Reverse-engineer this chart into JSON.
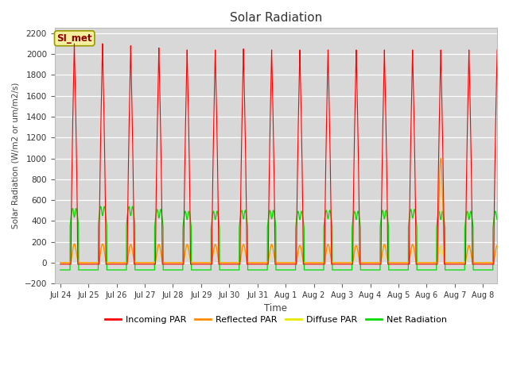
{
  "title": "Solar Radiation",
  "ylabel": "Solar Radiation (W/m2 or um/m2/s)",
  "xlabel": "Time",
  "ylim": [
    -200,
    2250
  ],
  "yticks": [
    -200,
    0,
    200,
    400,
    600,
    800,
    1000,
    1200,
    1400,
    1600,
    1800,
    2000,
    2200
  ],
  "bg_color": "#d8d8d8",
  "fig_color": "#ffffff",
  "legend_label": "SI_met",
  "n_days": 16,
  "x_tick_labels": [
    "Jul 24",
    "Jul 25",
    "Jul 26",
    "Jul 27",
    "Jul 28",
    "Jul 29",
    "Jul 30",
    "Jul 31",
    "Aug 1",
    "Aug 2",
    "Aug 3",
    "Aug 4",
    "Aug 5",
    "Aug 6",
    "Aug 7",
    "Aug 8"
  ],
  "colors": {
    "incoming": "#ff0000",
    "reflected": "#ff8c00",
    "diffuse": "#e8e800",
    "net": "#00dd00"
  },
  "incoming_peaks": [
    2100,
    2100,
    2080,
    2060,
    2040,
    2040,
    2050,
    2040,
    2040,
    2040,
    2040,
    2040,
    2040,
    2040,
    2040,
    2040
  ],
  "net_peaks": [
    580,
    600,
    600,
    570,
    550,
    550,
    560,
    560,
    550,
    560,
    550,
    560,
    570,
    550,
    550,
    550
  ],
  "refl_peaks": [
    180,
    180,
    175,
    175,
    175,
    175,
    175,
    175,
    165,
    175,
    165,
    175,
    175,
    165,
    165,
    165
  ],
  "diff_peaks": [
    175,
    175,
    170,
    170,
    170,
    170,
    170,
    170,
    160,
    170,
    160,
    170,
    170,
    160,
    160,
    160
  ],
  "refl_spike_day": 13,
  "refl_spike_val": 1000
}
